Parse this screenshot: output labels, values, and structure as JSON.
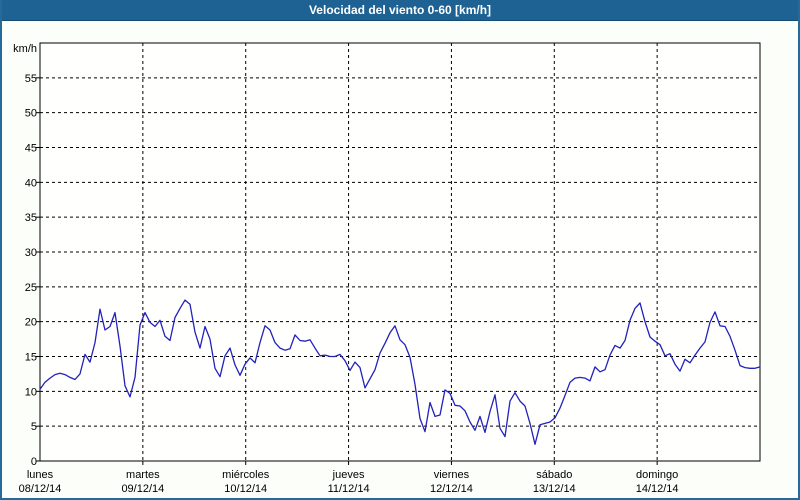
{
  "window": {
    "title": "Velocidad del viento 0-60 [km/h]"
  },
  "colors": {
    "titlebar_bg": "#1e6294",
    "frame_border": "#266a99",
    "outer_bg": "#fcfefa",
    "plot_bg": "#fffffe",
    "grid": "#000000",
    "axis": "#000000",
    "series_line": "#2222bb",
    "label_text": "#000000",
    "title_text": "#ffffff"
  },
  "chart_data": {
    "type": "line",
    "title": "Velocidad del viento 0-60 [km/h]",
    "xlabel": "",
    "ylabel": "km/h",
    "ylim": [
      0,
      60
    ],
    "ytick_step": 5,
    "ytick_labels": [
      "0",
      "5",
      "10",
      "15",
      "20",
      "25",
      "30",
      "35",
      "40",
      "45",
      "50",
      "55"
    ],
    "grid": "dashed",
    "legend": "none",
    "x_day_labels": [
      {
        "day": "lunes",
        "date": "08/12/14"
      },
      {
        "day": "martes",
        "date": "09/12/14"
      },
      {
        "day": "miércoles",
        "date": "10/12/14"
      },
      {
        "day": "jueves",
        "date": "11/12/14"
      },
      {
        "day": "viernes",
        "date": "12/12/14"
      },
      {
        "day": "domingo",
        "date": "14/12/14"
      },
      {
        "day": "sábado",
        "date": "13/12/14"
      }
    ],
    "x_day_order": [
      "lunes",
      "martes",
      "miércoles",
      "jueves",
      "viernes",
      "sábado",
      "domingo"
    ],
    "series_name": "Velocidad del viento",
    "sample_interval_hours": 1.1667,
    "values": [
      10.3,
      11.3,
      11.9,
      12.4,
      12.6,
      12.4,
      12.0,
      11.7,
      12.5,
      15.3,
      14.2,
      17.0,
      21.8,
      18.8,
      19.3,
      21.3,
      16.5,
      10.8,
      9.2,
      12.0,
      19.5,
      21.3,
      19.9,
      19.3,
      20.2,
      17.9,
      17.3,
      20.6,
      21.9,
      23.1,
      22.5,
      18.5,
      16.2,
      19.3,
      17.5,
      13.3,
      12.1,
      15.1,
      16.2,
      13.8,
      12.3,
      13.9,
      14.8,
      14.1,
      17.0,
      19.4,
      18.8,
      17.0,
      16.2,
      15.9,
      16.1,
      18.1,
      17.3,
      17.2,
      17.4,
      16.2,
      15.1,
      15.2,
      15.0,
      15.0,
      15.3,
      14.4,
      13.0,
      14.2,
      13.4,
      10.5,
      11.8,
      13.1,
      15.5,
      16.9,
      18.4,
      19.4,
      17.4,
      16.7,
      14.9,
      11.0,
      6.1,
      4.2,
      8.4,
      6.4,
      6.6,
      10.2,
      9.7,
      8.0,
      7.9,
      7.2,
      5.6,
      4.4,
      6.4,
      4.1,
      7.1,
      9.5,
      4.7,
      3.5,
      8.6,
      9.8,
      8.6,
      7.9,
      5.4,
      2.4,
      5.2,
      5.4,
      5.6,
      6.2,
      7.6,
      9.4,
      11.3,
      11.9,
      12.0,
      11.9,
      11.5,
      13.5,
      12.8,
      13.1,
      15.2,
      16.6,
      16.2,
      17.3,
      20.2,
      21.9,
      22.7,
      20.0,
      17.8,
      17.2,
      16.7,
      15.1,
      15.4,
      13.9,
      12.9,
      14.6,
      14.1,
      15.2,
      16.2,
      17.1,
      19.9,
      21.4,
      19.4,
      19.3,
      17.9,
      15.9,
      13.7,
      13.4,
      13.3,
      13.3,
      13.5
    ]
  }
}
